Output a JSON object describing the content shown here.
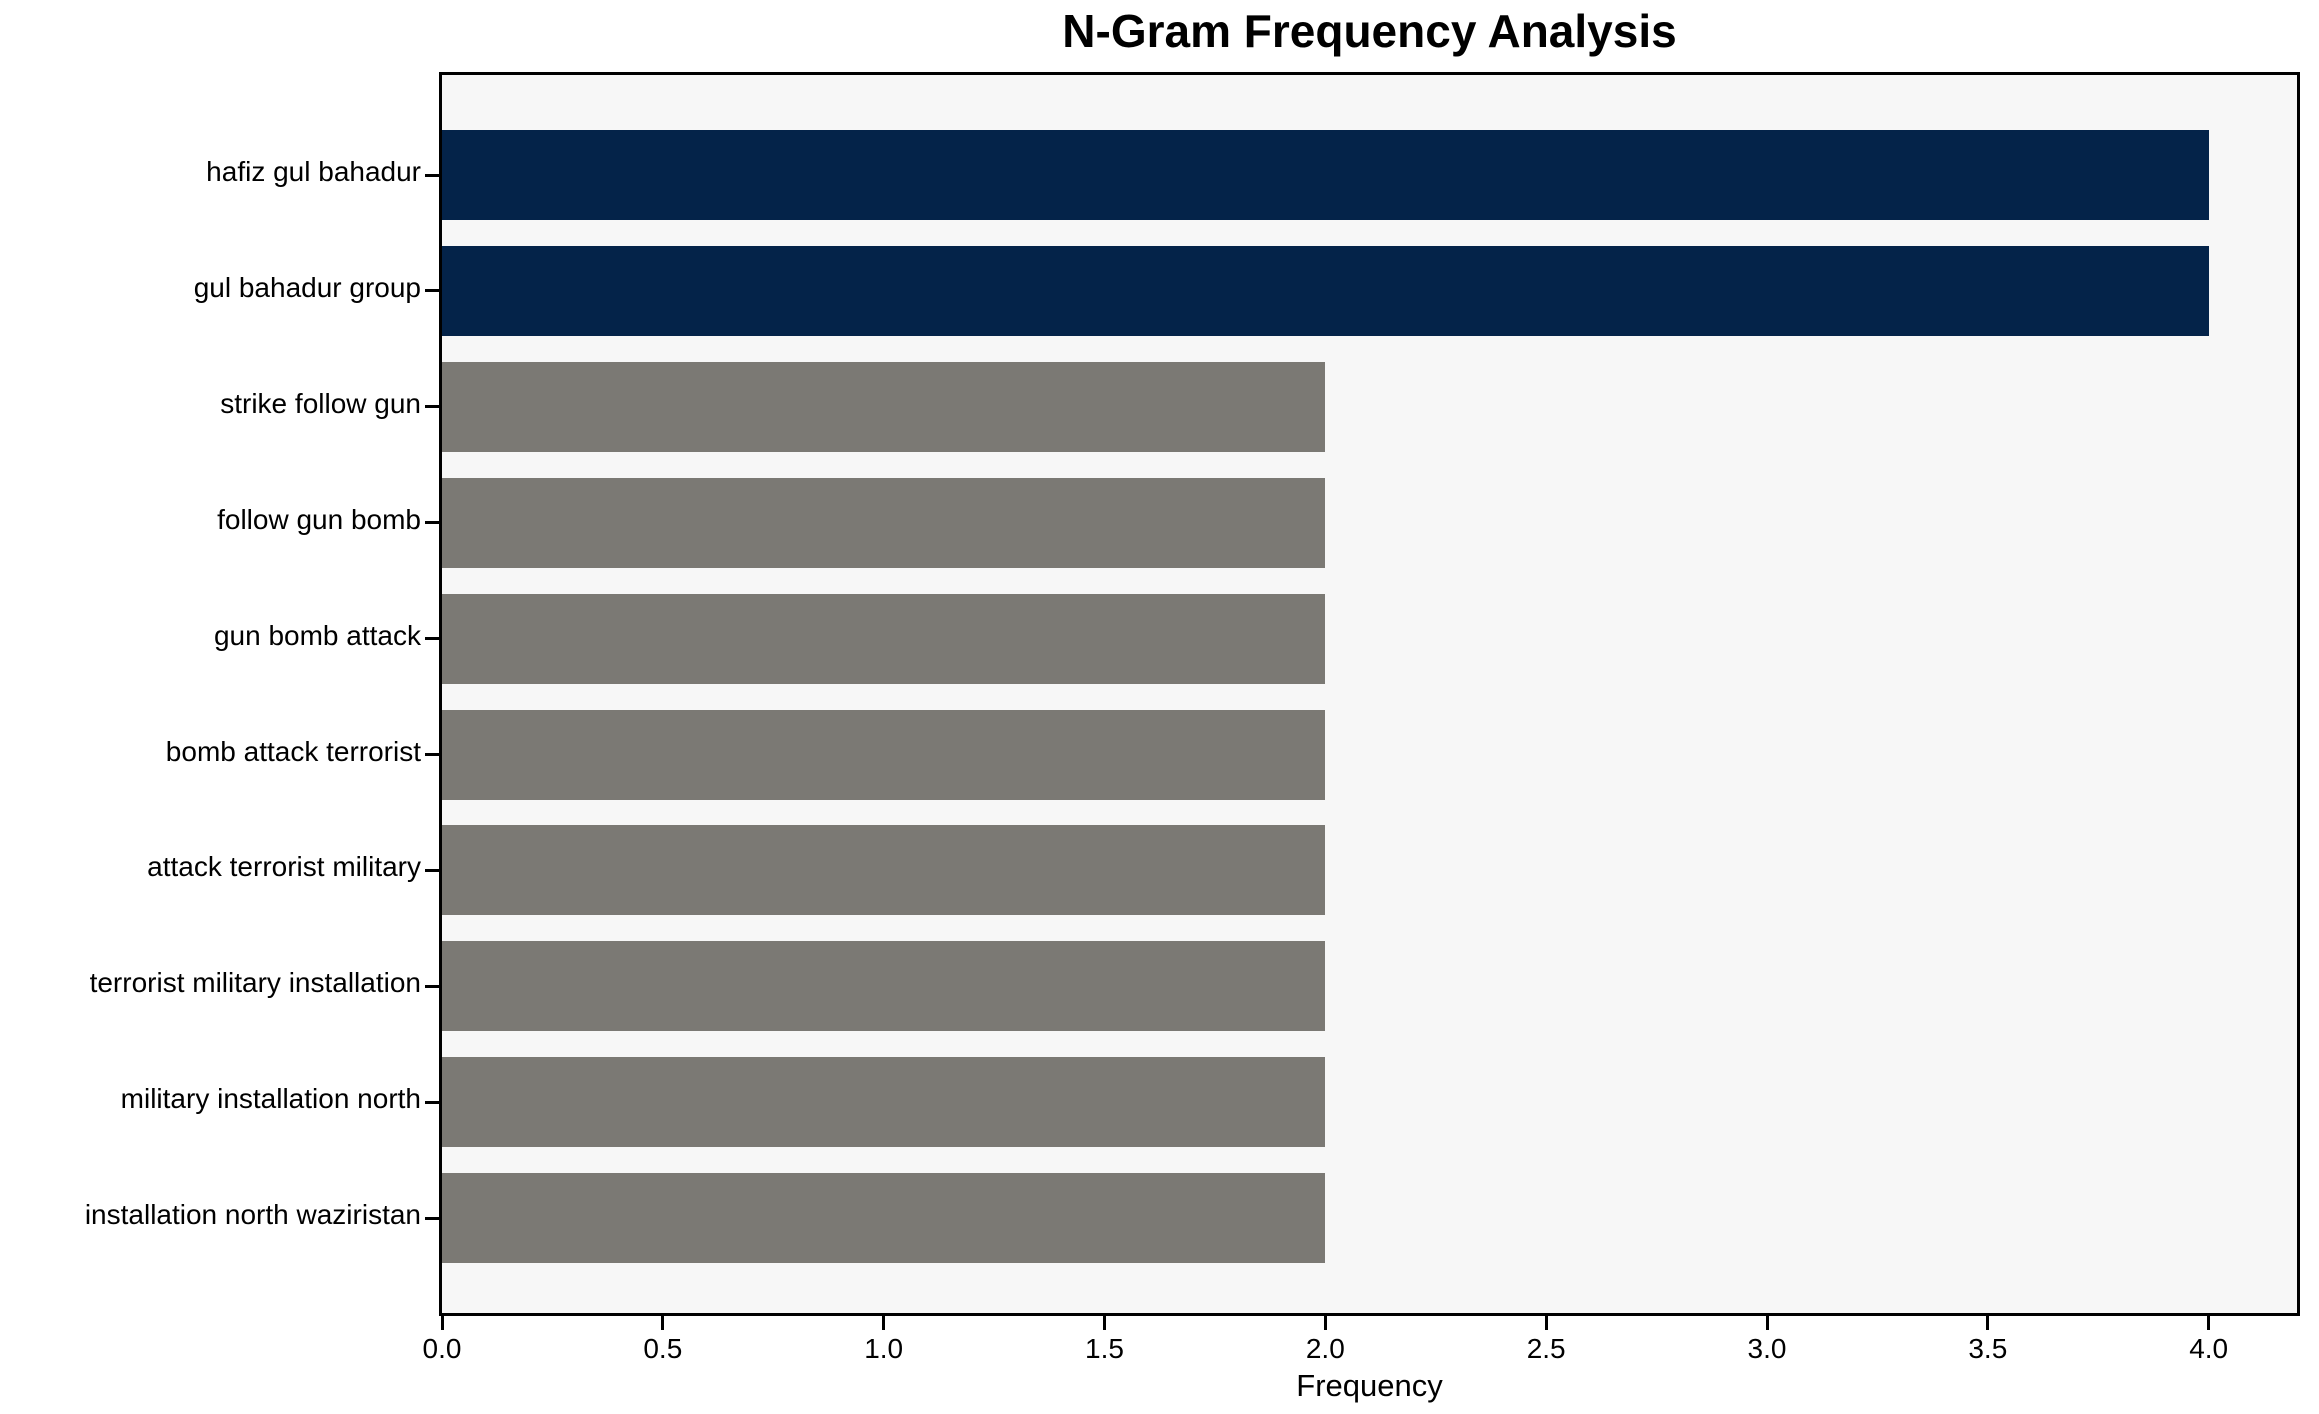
{
  "chart_data": {
    "type": "bar",
    "orientation": "horizontal",
    "title": "N-Gram Frequency Analysis",
    "xlabel": "Frequency",
    "ylabel": "",
    "categories": [
      "hafiz gul bahadur",
      "gul bahadur group",
      "strike follow gun",
      "follow gun bomb",
      "gun bomb attack",
      "bomb attack terrorist",
      "attack terrorist military",
      "terrorist military installation",
      "military installation north",
      "installation north waziristan"
    ],
    "values": [
      4,
      4,
      2,
      2,
      2,
      2,
      2,
      2,
      2,
      2
    ],
    "bar_color_roles": [
      "highlight",
      "highlight",
      "default",
      "default",
      "default",
      "default",
      "default",
      "default",
      "default",
      "default"
    ],
    "xticks": [
      "0.0",
      "0.5",
      "1.0",
      "1.5",
      "2.0",
      "2.5",
      "3.0",
      "3.5",
      "4.0"
    ],
    "xlim": [
      0,
      4.2
    ],
    "grid": false,
    "legend_position": "none",
    "colors": {
      "highlight_bar": "#042349",
      "default_bar": "#7b7974",
      "plot_background": "#f7f7f7",
      "figure_background": "#ffffff",
      "spine": "#000000",
      "text": "#000000"
    }
  }
}
